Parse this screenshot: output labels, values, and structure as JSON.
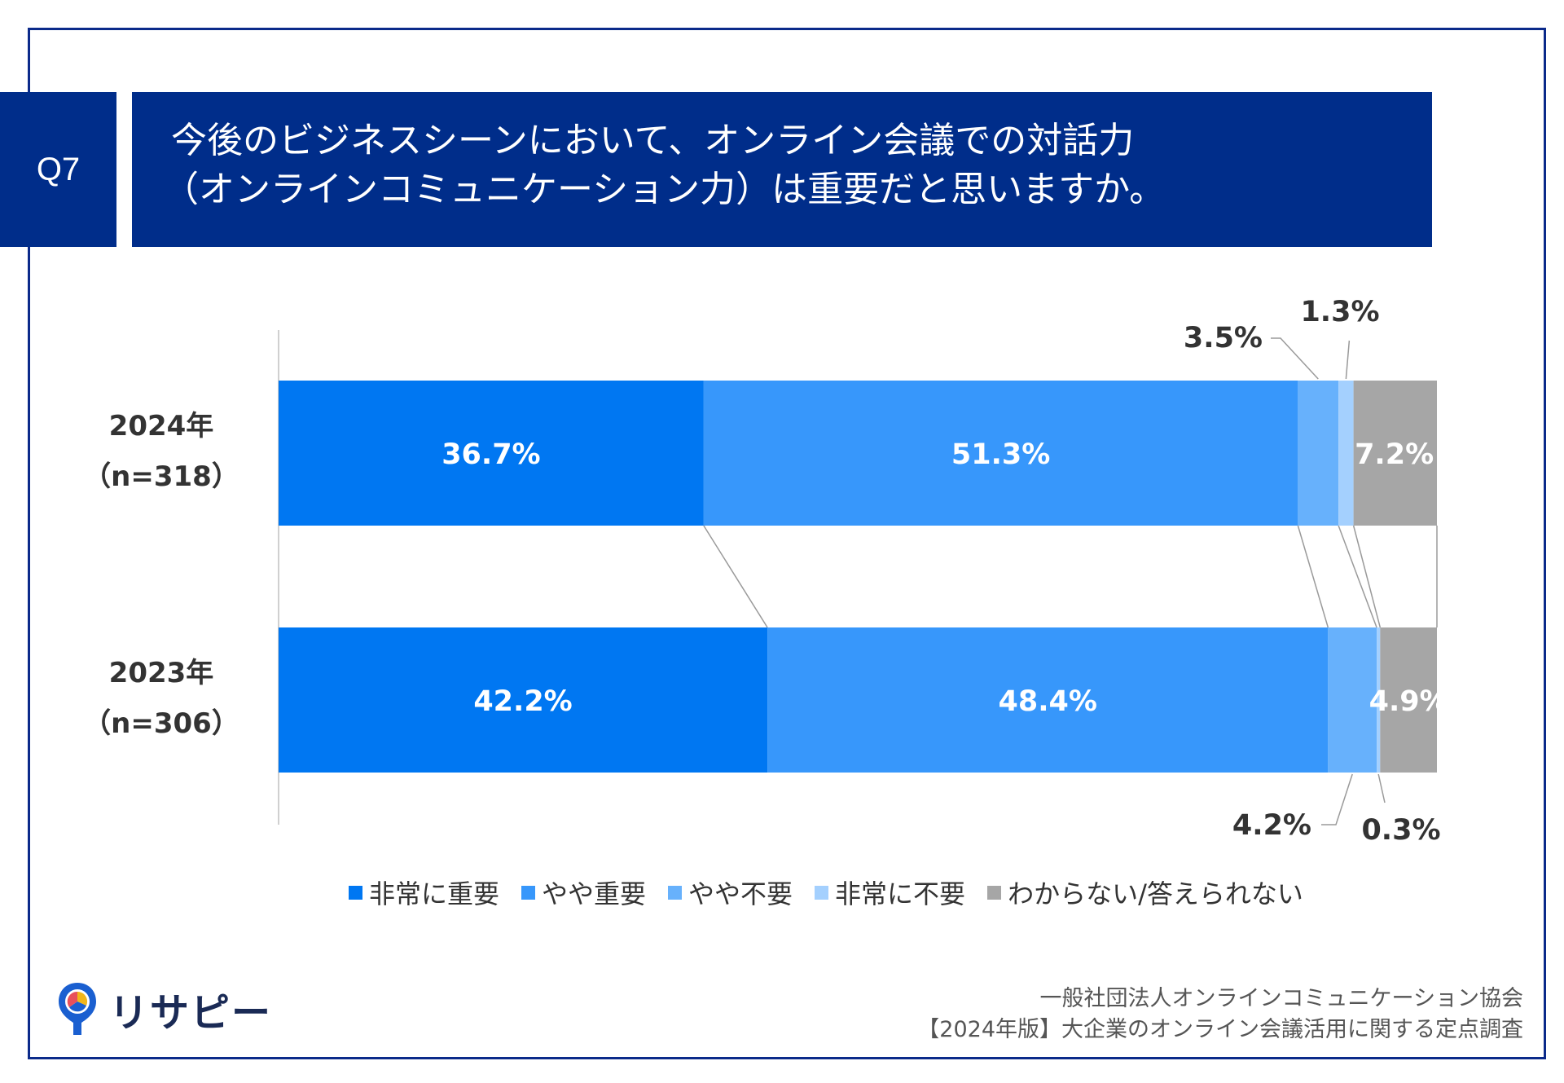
{
  "question": {
    "badge": "Q7",
    "line1": "今後のビジネスシーンにおいて、オンライン会議での対話力",
    "line2": "（オンラインコミュニケーション力）は重要だと思いますか。"
  },
  "chart_data": {
    "type": "bar",
    "orientation": "horizontal",
    "stacked": "percent",
    "categories": [
      {
        "year": "2024年",
        "n": "（n=318）"
      },
      {
        "year": "2023年",
        "n": "（n=306）"
      }
    ],
    "series": [
      {
        "name": "非常に重要",
        "color": "#0077f2",
        "values": [
          36.7,
          42.2
        ],
        "labels": [
          "36.7%",
          "42.2%"
        ]
      },
      {
        "name": "やや重要",
        "color": "#3797fb",
        "values": [
          51.3,
          48.4
        ],
        "labels": [
          "51.3%",
          "48.4%"
        ]
      },
      {
        "name": "やや不要",
        "color": "#67b1fc",
        "values": [
          3.5,
          4.2
        ],
        "labels": [
          "3.5%",
          "4.2%"
        ]
      },
      {
        "name": "非常に不要",
        "color": "#a4d0fe",
        "values": [
          1.3,
          0.3
        ],
        "labels": [
          "1.3%",
          "0.3%"
        ]
      },
      {
        "name": "わからない/答えられない",
        "color": "#a6a6a6",
        "values": [
          7.2,
          4.9
        ],
        "labels": [
          "7.2%",
          "4.9%"
        ]
      }
    ],
    "xlim": [
      0,
      100
    ],
    "legend": "bottom"
  },
  "logo": {
    "name": "リサピー",
    "icon": "map-pin-pie-icon"
  },
  "source": {
    "line1": "一般社団法人オンラインコミュニケーション協会",
    "line2": "【2024年版】大企業のオンライン会議活用に関する定点調査"
  }
}
